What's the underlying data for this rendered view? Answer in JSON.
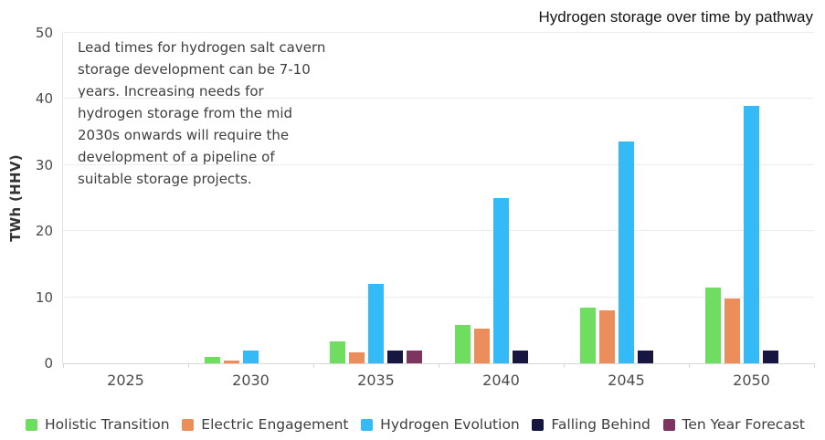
{
  "title": {
    "text": "Hydrogen storage over time by pathway"
  },
  "annotation": {
    "text": "Lead times for hydrogen salt cavern storage development can be 7-10 years. Increasing needs for hydrogen storage from the mid 2030s onwards will require the development of a pipeline of suitable storage projects."
  },
  "chart_data": {
    "type": "bar",
    "title": "Hydrogen storage over time by pathway",
    "xlabel": "",
    "ylabel": "TWh (HHV)",
    "ylim": [
      0,
      50
    ],
    "yticks": [
      0,
      10,
      20,
      30,
      40,
      50
    ],
    "grid": true,
    "legend_position": "bottom",
    "categories": [
      "2025",
      "2030",
      "2035",
      "2040",
      "2045",
      "2050"
    ],
    "series": [
      {
        "name": "Holistic Transition",
        "color": "#6edd60",
        "values": [
          0,
          1,
          3.3,
          5.8,
          8.4,
          11.5
        ]
      },
      {
        "name": "Electric Engagement",
        "color": "#ec8d5c",
        "values": [
          0,
          0.4,
          1.6,
          5.2,
          8,
          9.8
        ]
      },
      {
        "name": "Hydrogen Evolution",
        "color": "#33baf7",
        "values": [
          0,
          2,
          12,
          25,
          33.5,
          39
        ]
      },
      {
        "name": "Falling Behind",
        "color": "#161640",
        "values": [
          0,
          0,
          2,
          2,
          2,
          2
        ]
      },
      {
        "name": "Ten Year Forecast",
        "color": "#7d3560",
        "values": [
          0,
          0,
          2,
          0,
          0,
          0
        ]
      }
    ]
  }
}
